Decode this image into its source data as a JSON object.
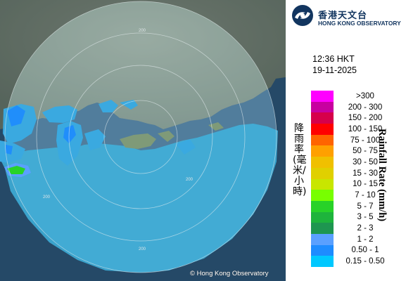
{
  "map": {
    "ring_labels": [
      "200",
      "200",
      "200",
      "200"
    ],
    "copyright": "© Hong Kong Observatory"
  },
  "logo": {
    "name_cn": "香港天文台",
    "name_en": "HONG KONG OBSERVATORY"
  },
  "time": "12:36 HKT",
  "date": "19-11-2025",
  "legend": {
    "title_cn": "降雨率(毫米/小時)",
    "title_en": "Rainfall Rate (mm/h)",
    "items": [
      {
        "label": ">300",
        "color": "#ff00ff"
      },
      {
        "label": "200 - 300",
        "color": "#c800a0"
      },
      {
        "label": "150 - 200",
        "color": "#d6004a"
      },
      {
        "label": "100 - 150",
        "color": "#ff0000"
      },
      {
        "label": "75 - 100",
        "color": "#ff6400"
      },
      {
        "label": "50 - 75",
        "color": "#ffa000"
      },
      {
        "label": "30 - 50",
        "color": "#f0c000"
      },
      {
        "label": "15 - 30",
        "color": "#e0d000"
      },
      {
        "label": "10 - 15",
        "color": "#c8e600"
      },
      {
        "label": "7 - 10",
        "color": "#78ff00"
      },
      {
        "label": "5 - 7",
        "color": "#28d228"
      },
      {
        "label": "3 - 5",
        "color": "#1eb43c"
      },
      {
        "label": "2 - 3",
        "color": "#1e9650"
      },
      {
        "label": "1 - 2",
        "color": "#5aa0ff"
      },
      {
        "label": "0.50 - 1",
        "color": "#1e8cff"
      },
      {
        "label": "0.15 - 0.50",
        "color": "#00c8ff"
      }
    ]
  }
}
